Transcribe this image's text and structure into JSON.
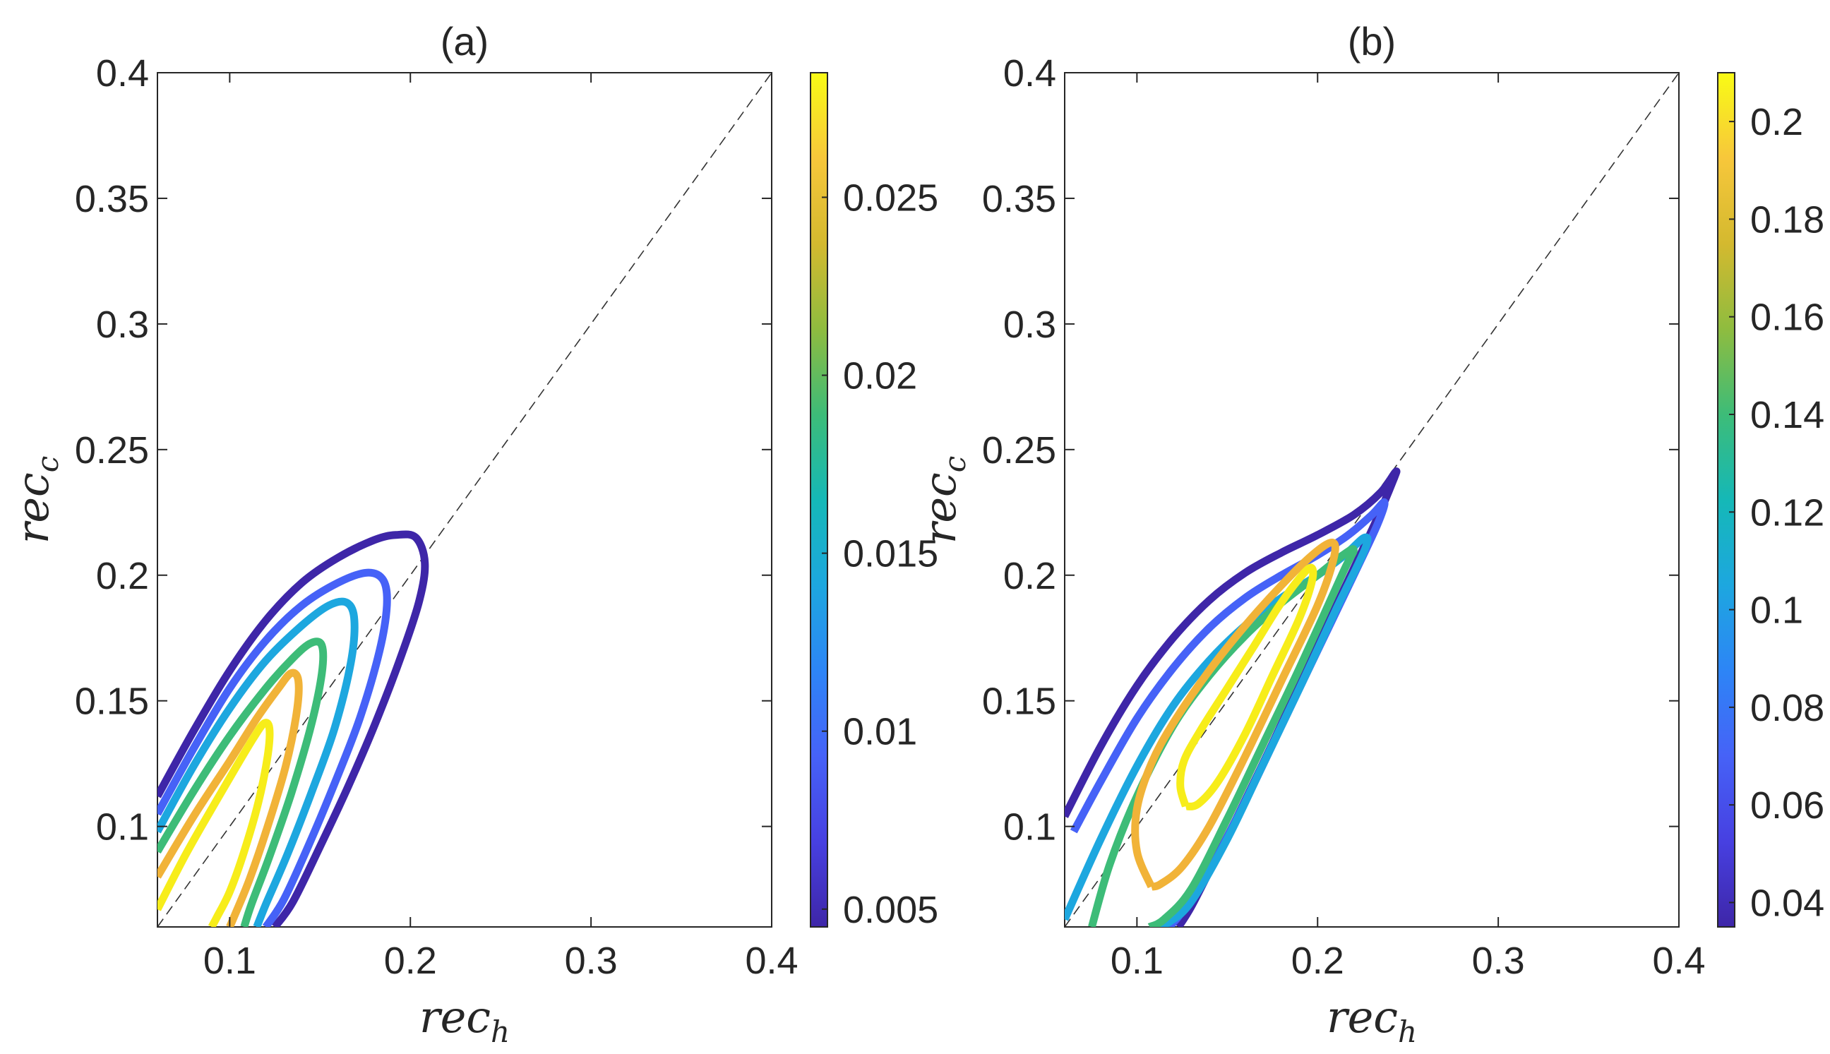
{
  "chart_data": [
    {
      "type": "line",
      "title": "(a)",
      "xlabel": "rec",
      "xlabel_subscript": "h",
      "ylabel": "rec",
      "ylabel_subscript": "c",
      "xlim": [
        0.06,
        0.4
      ],
      "ylim": [
        0.06,
        0.4
      ],
      "xticks": [
        0.1,
        0.2,
        0.3,
        0.4
      ],
      "xtick_labels": [
        "0.1",
        "0.2",
        "0.3",
        "0.4"
      ],
      "yticks": [
        0.1,
        0.15,
        0.2,
        0.25,
        0.3,
        0.35,
        0.4
      ],
      "ytick_labels": [
        "0.1",
        "0.15",
        "0.2",
        "0.25",
        "0.3",
        "0.35",
        "0.4"
      ],
      "diagonal": {
        "style": "dashed",
        "from": [
          0.06,
          0.06
        ],
        "to": [
          0.4,
          0.4
        ]
      },
      "colorbar": {
        "colormap": "parula",
        "range": [
          0.0045,
          0.0285
        ],
        "ticks": [
          0.005,
          0.01,
          0.015,
          0.02,
          0.025
        ],
        "tick_labels": [
          "0.005",
          "0.01",
          "0.015",
          "0.02",
          "0.025"
        ]
      },
      "series": [
        {
          "name": "level-0.005",
          "level": 0.005,
          "color": "#3e26a8",
          "x": [
            0.06,
            0.08,
            0.1,
            0.12,
            0.14,
            0.16,
            0.18,
            0.192,
            0.203,
            0.208,
            0.205,
            0.195,
            0.18,
            0.165,
            0.15,
            0.135,
            0.125
          ],
          "y": [
            0.112,
            0.138,
            0.162,
            0.182,
            0.197,
            0.207,
            0.214,
            0.216,
            0.215,
            0.205,
            0.19,
            0.168,
            0.14,
            0.115,
            0.092,
            0.07,
            0.06
          ]
        },
        {
          "name": "level-0.008",
          "level": 0.008,
          "color": "#4662f7",
          "x": [
            0.06,
            0.08,
            0.1,
            0.12,
            0.14,
            0.16,
            0.176,
            0.185,
            0.187,
            0.183,
            0.172,
            0.158,
            0.144,
            0.13,
            0.12
          ],
          "y": [
            0.105,
            0.131,
            0.155,
            0.174,
            0.188,
            0.197,
            0.201,
            0.198,
            0.188,
            0.17,
            0.143,
            0.117,
            0.093,
            0.071,
            0.06
          ]
        },
        {
          "name": "level-0.013",
          "level": 0.013,
          "color": "#1da7df",
          "x": [
            0.06,
            0.08,
            0.1,
            0.12,
            0.14,
            0.155,
            0.165,
            0.169,
            0.167,
            0.158,
            0.145,
            0.132,
            0.12,
            0.115
          ],
          "y": [
            0.098,
            0.124,
            0.147,
            0.166,
            0.18,
            0.188,
            0.189,
            0.182,
            0.165,
            0.139,
            0.113,
            0.089,
            0.069,
            0.06
          ]
        },
        {
          "name": "level-0.019",
          "level": 0.019,
          "color": "#3dbc78",
          "x": [
            0.06,
            0.08,
            0.1,
            0.12,
            0.135,
            0.145,
            0.151,
            0.151,
            0.145,
            0.134,
            0.122,
            0.112,
            0.108
          ],
          "y": [
            0.09,
            0.114,
            0.136,
            0.155,
            0.167,
            0.173,
            0.172,
            0.161,
            0.14,
            0.113,
            0.088,
            0.069,
            0.06
          ]
        },
        {
          "name": "level-0.024",
          "level": 0.024,
          "color": "#f1b338",
          "x": [
            0.06,
            0.08,
            0.1,
            0.115,
            0.127,
            0.134,
            0.138,
            0.137,
            0.131,
            0.121,
            0.111,
            0.103,
            0.1
          ],
          "y": [
            0.08,
            0.104,
            0.126,
            0.143,
            0.155,
            0.161,
            0.158,
            0.145,
            0.124,
            0.1,
            0.079,
            0.065,
            0.06
          ]
        },
        {
          "name": "level-0.028",
          "level": 0.028,
          "color": "#f7ed1a",
          "x": [
            0.06,
            0.075,
            0.09,
            0.103,
            0.113,
            0.119,
            0.122,
            0.121,
            0.116,
            0.108,
            0.1,
            0.093,
            0.09
          ],
          "y": [
            0.067,
            0.088,
            0.107,
            0.123,
            0.135,
            0.141,
            0.139,
            0.128,
            0.11,
            0.09,
            0.074,
            0.064,
            0.06
          ]
        }
      ]
    },
    {
      "type": "line",
      "title": "(b)",
      "xlabel": "rec",
      "xlabel_subscript": "h",
      "ylabel": "rec",
      "ylabel_subscript": "c",
      "xlim": [
        0.06,
        0.4
      ],
      "ylim": [
        0.06,
        0.4
      ],
      "xticks": [
        0.1,
        0.2,
        0.3,
        0.4
      ],
      "xtick_labels": [
        "0.1",
        "0.2",
        "0.3",
        "0.4"
      ],
      "yticks": [
        0.1,
        0.15,
        0.2,
        0.25,
        0.3,
        0.35,
        0.4
      ],
      "ytick_labels": [
        "0.1",
        "0.15",
        "0.2",
        "0.25",
        "0.3",
        "0.35",
        "0.4"
      ],
      "diagonal": {
        "style": "dashed",
        "from": [
          0.06,
          0.06
        ],
        "to": [
          0.4,
          0.4
        ]
      },
      "colorbar": {
        "colormap": "parula",
        "range": [
          0.035,
          0.21
        ],
        "ticks": [
          0.04,
          0.06,
          0.08,
          0.1,
          0.12,
          0.14,
          0.16,
          0.18,
          0.2
        ],
        "tick_labels": [
          "0.04",
          "0.06",
          "0.08",
          "0.1",
          "0.12",
          "0.14",
          "0.16",
          "0.18",
          "0.2"
        ]
      },
      "series": [
        {
          "name": "level-0.04",
          "level": 0.04,
          "color": "#3e26a8",
          "x": [
            0.06,
            0.08,
            0.1,
            0.12,
            0.14,
            0.16,
            0.18,
            0.2,
            0.22,
            0.235,
            0.243,
            0.242,
            0.232,
            0.215,
            0.195,
            0.175,
            0.155,
            0.14,
            0.13,
            0.123
          ],
          "y": [
            0.104,
            0.132,
            0.156,
            0.175,
            0.19,
            0.201,
            0.209,
            0.216,
            0.224,
            0.233,
            0.241,
            0.238,
            0.221,
            0.195,
            0.164,
            0.133,
            0.103,
            0.082,
            0.068,
            0.06
          ]
        },
        {
          "name": "level-0.065",
          "level": 0.065,
          "color": "#4662f7",
          "x": [
            0.065,
            0.08,
            0.1,
            0.12,
            0.14,
            0.16,
            0.18,
            0.2,
            0.217,
            0.23,
            0.237,
            0.233,
            0.22,
            0.2,
            0.18,
            0.16,
            0.14,
            0.125,
            0.118
          ],
          "y": [
            0.098,
            0.118,
            0.143,
            0.163,
            0.179,
            0.191,
            0.2,
            0.208,
            0.216,
            0.224,
            0.229,
            0.22,
            0.2,
            0.17,
            0.14,
            0.11,
            0.082,
            0.066,
            0.06
          ]
        },
        {
          "name": "level-0.09",
          "level": 0.09,
          "color": "#1da7df",
          "x": [
            0.06,
            0.08,
            0.1,
            0.12,
            0.14,
            0.16,
            0.18,
            0.2,
            0.215,
            0.226,
            0.226,
            0.21,
            0.19,
            0.17,
            0.15,
            0.13,
            0.118,
            0.112
          ],
          "y": [
            0.063,
            0.095,
            0.124,
            0.148,
            0.166,
            0.18,
            0.191,
            0.2,
            0.208,
            0.215,
            0.21,
            0.186,
            0.155,
            0.125,
            0.095,
            0.07,
            0.062,
            0.06
          ]
        },
        {
          "name": "level-0.14",
          "level": 0.14,
          "color": "#3dbc78",
          "x": [
            0.075,
            0.085,
            0.1,
            0.12,
            0.14,
            0.16,
            0.18,
            0.2,
            0.214,
            0.22,
            0.214,
            0.19,
            0.17,
            0.15,
            0.13,
            0.115,
            0.107
          ],
          "y": [
            0.06,
            0.085,
            0.112,
            0.14,
            0.16,
            0.176,
            0.189,
            0.2,
            0.208,
            0.21,
            0.201,
            0.163,
            0.133,
            0.103,
            0.075,
            0.063,
            0.06
          ]
        },
        {
          "name": "level-0.18",
          "level": 0.18,
          "color": "#f1b338",
          "x": [
            0.108,
            0.1,
            0.1,
            0.108,
            0.12,
            0.14,
            0.16,
            0.18,
            0.197,
            0.208,
            0.209,
            0.2,
            0.18,
            0.16,
            0.14,
            0.125,
            0.113,
            0.108
          ],
          "y": [
            0.076,
            0.09,
            0.107,
            0.125,
            0.141,
            0.162,
            0.18,
            0.196,
            0.208,
            0.213,
            0.207,
            0.188,
            0.158,
            0.128,
            0.1,
            0.084,
            0.077,
            0.076
          ]
        },
        {
          "name": "level-0.21",
          "level": 0.21,
          "color": "#f7ed1a",
          "x": [
            0.127,
            0.124,
            0.126,
            0.135,
            0.15,
            0.165,
            0.178,
            0.188,
            0.196,
            0.197,
            0.19,
            0.175,
            0.16,
            0.145,
            0.134,
            0.127
          ],
          "y": [
            0.108,
            0.116,
            0.126,
            0.138,
            0.155,
            0.172,
            0.187,
            0.197,
            0.203,
            0.198,
            0.183,
            0.16,
            0.137,
            0.118,
            0.109,
            0.108
          ]
        }
      ]
    }
  ]
}
